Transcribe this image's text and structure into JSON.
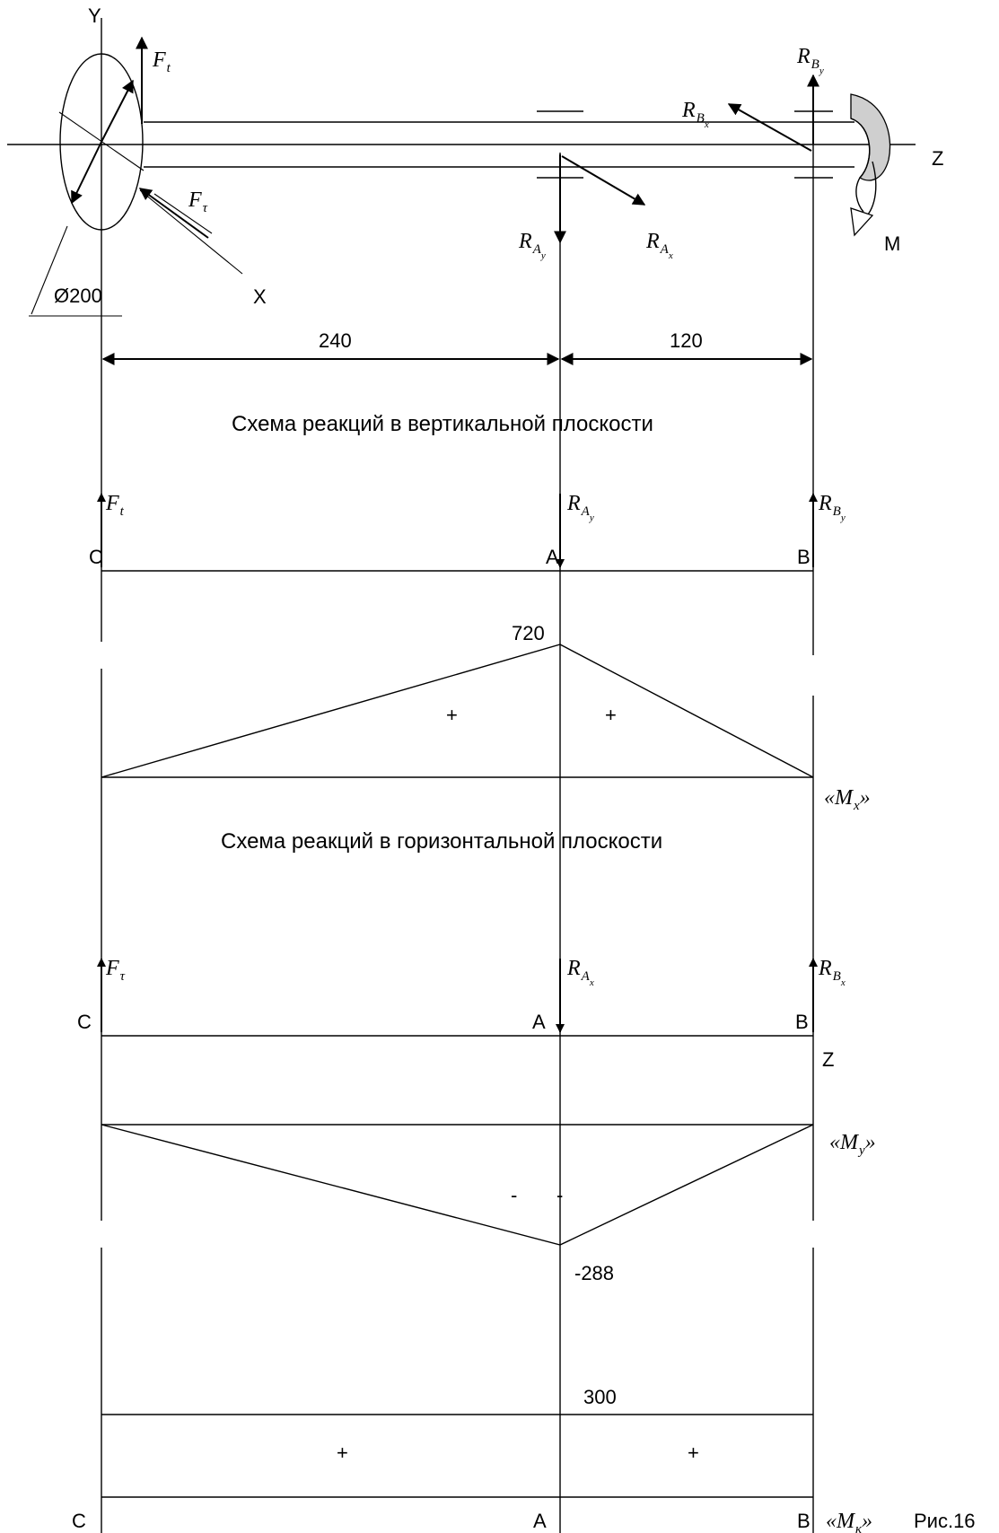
{
  "axes": {
    "y": "Y",
    "z": "Z",
    "x": "X"
  },
  "dims": {
    "diameter": "Ø200",
    "span_ca": "240",
    "span_ab": "120"
  },
  "captions": {
    "vertical": "Схема реакций в вертикальной плоскости",
    "horizontal": "Схема реакций в горизонтальной плоскости",
    "figure": "Рис.16"
  },
  "points": {
    "c": "C",
    "a": "A",
    "b": "B",
    "z": "Z"
  },
  "moment_label": "M",
  "forces": {
    "F": "F",
    "R": "R",
    "t": "t",
    "tau": "τ",
    "A": "A",
    "B": "B",
    "x": "x",
    "y": "y"
  },
  "diagrams": {
    "mx": {
      "name": "M",
      "sub": "x",
      "value": "720",
      "sign_left": "+",
      "sign_right": "+"
    },
    "my": {
      "name": "M",
      "sub": "y",
      "value": "-288",
      "sign_left": "-",
      "sign_right": "-"
    },
    "mk": {
      "name": "M",
      "sub": "к",
      "value": "300",
      "sign_left": "+",
      "sign_right": "+"
    }
  },
  "quote_open": "«",
  "quote_close": "»"
}
